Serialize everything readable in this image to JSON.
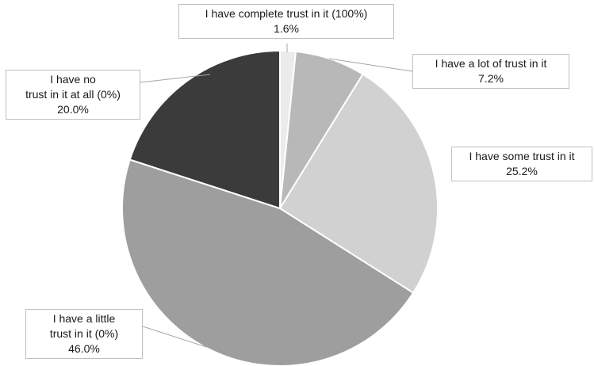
{
  "chart_data": {
    "type": "pie",
    "title": "",
    "start_angle_deg": 0,
    "direction": "clockwise",
    "slices": [
      {
        "label_lines": [
          "I have complete trust in it (100%)"
        ],
        "value": 1.6,
        "value_label": "1.6%",
        "color": "#ebebeb"
      },
      {
        "label_lines": [
          "I have a lot of trust in it"
        ],
        "value": 7.2,
        "value_label": "7.2%",
        "color": "#b8b8b8"
      },
      {
        "label_lines": [
          "I have some trust in it"
        ],
        "value": 25.2,
        "value_label": "25.2%",
        "color": "#d1d1d1"
      },
      {
        "label_lines": [
          "I have a little",
          "trust in it (0%)"
        ],
        "value": 46.0,
        "value_label": "46.0%",
        "color": "#9e9e9e"
      },
      {
        "label_lines": [
          "I have no",
          "trust in it at all (0%)"
        ],
        "value": 20.0,
        "value_label": "20.0%",
        "color": "#3b3b3b"
      }
    ]
  }
}
